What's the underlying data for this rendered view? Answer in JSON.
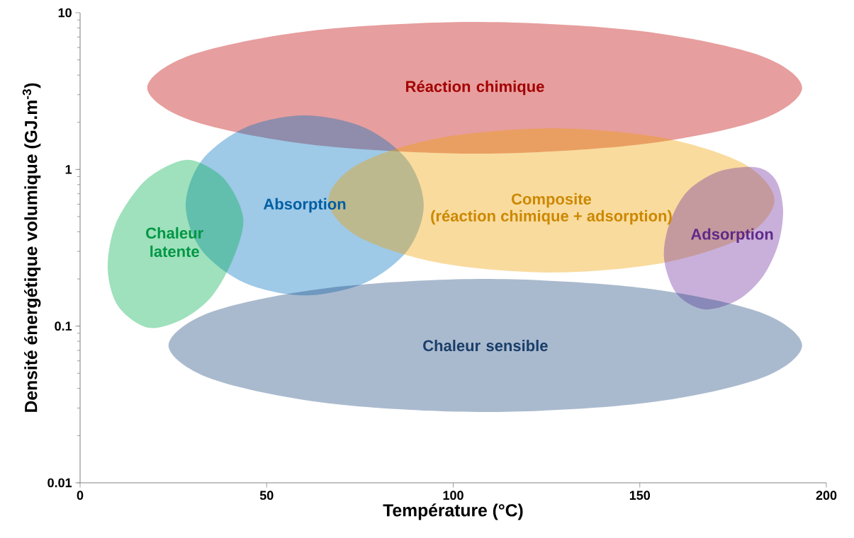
{
  "chart_data": {
    "type": "area",
    "xlabel": "Température (°C)",
    "ylabel": "Densité énergétique volumique (GJ.m$^{-3}$)",
    "log": "y",
    "xlim": [
      0,
      200
    ],
    "ylim": [
      0.01,
      10
    ],
    "xticks": [
      0,
      50,
      100,
      150,
      200
    ],
    "yticks": [
      0.01,
      0.1,
      1,
      10
    ],
    "annotations": [
      "(réaction chimique + adsorption)"
    ],
    "series": [
      {
        "name": "Réaction chimique",
        "color": "#c00000",
        "x": [
          193.5,
          181.8,
          149.7,
          105.8,
          61.9,
          29.8,
          18.0,
          29.8,
          61.9,
          105.8,
          149.7,
          181.8
        ],
        "values": [
          3.32,
          5.38,
          7.67,
          8.74,
          7.67,
          5.38,
          3.32,
          2.05,
          1.44,
          1.26,
          1.44,
          2.05
        ]
      },
      {
        "name": "Absorption",
        "color": "#0070c0",
        "x": [
          92.1,
          87.8,
          76.2,
          60.2,
          44.3,
          32.6,
          28.3,
          32.6,
          44.3,
          60.2,
          76.2,
          87.8
        ],
        "values": [
          0.59,
          1.14,
          1.85,
          2.21,
          1.85,
          1.14,
          0.59,
          0.305,
          0.188,
          0.157,
          0.188,
          0.305
        ]
      },
      {
        "name": "Composite",
        "color": "#f0a000",
        "x": [
          186.1,
          178.1,
          156.2,
          126.3,
          96.4,
          74.5,
          66.5,
          74.5,
          96.4,
          126.3,
          156.2,
          178.1
        ],
        "values": [
          0.635,
          1.08,
          1.59,
          1.83,
          1.59,
          1.08,
          0.635,
          0.373,
          0.253,
          0.22,
          0.253,
          0.373
        ]
      },
      {
        "name": "Chaleur latente",
        "color": "#00b050",
        "x": [
          30.4,
          38.7,
          43.7,
          41.2,
          35.5,
          27.9,
          18.4,
          10.3,
          7.4,
          9.5,
          16.5,
          24.1
        ],
        "values": [
          1.14,
          0.867,
          0.494,
          0.276,
          0.157,
          0.112,
          0.0975,
          0.133,
          0.231,
          0.446,
          0.806,
          1.07
        ]
      },
      {
        "name": "Adsorption",
        "color": "#7030a0",
        "x": [
          181.4,
          186.5,
          188.4,
          187.1,
          182.9,
          176.1,
          167.3,
          159.9,
          156.5,
          158.0,
          162.8,
          171.3
        ],
        "values": [
          1.03,
          0.849,
          0.554,
          0.333,
          0.206,
          0.146,
          0.128,
          0.161,
          0.27,
          0.455,
          0.727,
          0.972
        ]
      },
      {
        "name": "Chaleur sensible",
        "color": "#1f497d",
        "x": [
          193.5,
          182.1,
          151.1,
          108.6,
          66.2,
          35.1,
          23.7,
          35.1,
          66.2,
          108.6,
          151.1,
          182.1
        ],
        "values": [
          0.0752,
          0.123,
          0.175,
          0.2,
          0.175,
          0.123,
          0.0752,
          0.0461,
          0.0322,
          0.0283,
          0.0322,
          0.0461
        ]
      }
    ]
  }
}
